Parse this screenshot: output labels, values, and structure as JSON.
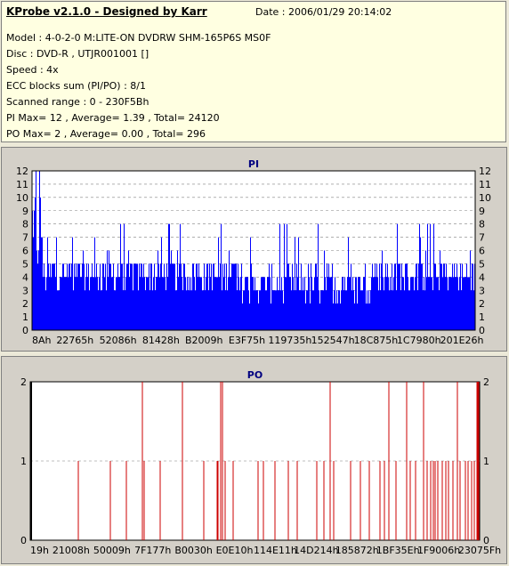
{
  "app": {
    "title": "KProbe v2.1.0 - Designed by Karr",
    "date": "Date : 2006/01/29 20:14:02"
  },
  "info": {
    "model": "Model : 4-0-2-0 M:LITE-ON DVDRW SHM-165P6S MS0F",
    "disc": "Disc : DVD-R , UTJR001001 []",
    "speed": "Speed : 4x",
    "ecc": "ECC blocks sum (PI/PO) : 8/1",
    "scanned": "Scanned range : 0 - 230F5Bh",
    "pi_stats": "PI Max= 12 , Average= 1.39 , Total= 24120",
    "po_stats": "PO Max= 2 , Average= 0.00 , Total= 296"
  },
  "colors": {
    "pi_fill": "#0000ff",
    "po_line": "#cc0000",
    "grid": "#808080",
    "panel_bg": "#ffffe1"
  },
  "chart_data": [
    {
      "type": "bar",
      "title": "PI",
      "ylim": [
        0,
        12
      ],
      "y_ticks": [
        "0",
        "1",
        "2",
        "3",
        "4",
        "5",
        "6",
        "7",
        "8",
        "9",
        "10",
        "11",
        "12"
      ],
      "x_tick_labels": [
        "8Ah",
        "22765h",
        "52086h",
        "81428h",
        "B2009h",
        "E3F75h",
        "119735h",
        "152547h",
        "18C875h",
        "1C7980h",
        "201E26h"
      ],
      "grid": "dashed horizontal",
      "average": 1.39,
      "max": 12
    },
    {
      "type": "bar",
      "title": "PO",
      "ylim": [
        0,
        2
      ],
      "y_ticks": [
        "0",
        "1",
        "2"
      ],
      "x_tick_labels": [
        "19h",
        "21008h",
        "50009h",
        "7F177h",
        "B0030h",
        "E0E10h",
        "114E11h",
        "14D214h",
        "185872h",
        "1BF35Eh",
        "1F9006h",
        "23075Fh"
      ],
      "grid": "dashed horizontal",
      "max": 2
    }
  ]
}
